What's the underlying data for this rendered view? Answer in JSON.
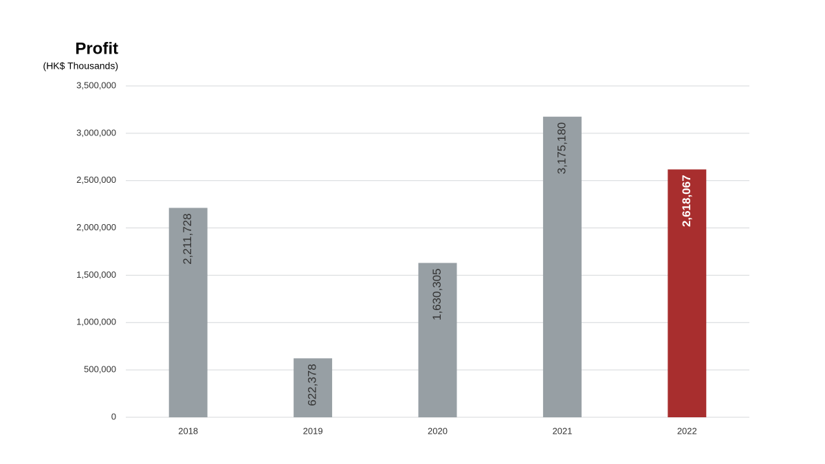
{
  "chart_data": {
    "type": "bar",
    "title": "Profit",
    "subtitle": "(HK$ Thousands)",
    "categories": [
      "2018",
      "2019",
      "2020",
      "2021",
      "2022"
    ],
    "values": [
      2211728,
      622378,
      1630305,
      3175180,
      2618067
    ],
    "value_labels": [
      "2,211,728",
      "622,378",
      "1,630,305",
      "3,175,180",
      "2,618,067"
    ],
    "colors": [
      "#979fa4",
      "#979fa4",
      "#979fa4",
      "#979fa4",
      "#a82e2e"
    ],
    "value_label_colors": [
      "#333333",
      "#333333",
      "#333333",
      "#333333",
      "#ffffff"
    ],
    "ylim": [
      0,
      3500000
    ],
    "yticks": [
      0,
      {
        "value": 500000,
        "label": "500,000"
      },
      {
        "value": 1000000,
        "label": "1,000,000"
      },
      {
        "value": 1500000,
        "label": "1,500,000"
      },
      {
        "value": 2000000,
        "label": "2,000,000"
      },
      {
        "value": 2500000,
        "label": "2,500,000"
      },
      {
        "value": 3000000,
        "label": "3,000,000"
      },
      {
        "value": 3500000,
        "label": "3,500,000"
      }
    ],
    "grid": true
  }
}
